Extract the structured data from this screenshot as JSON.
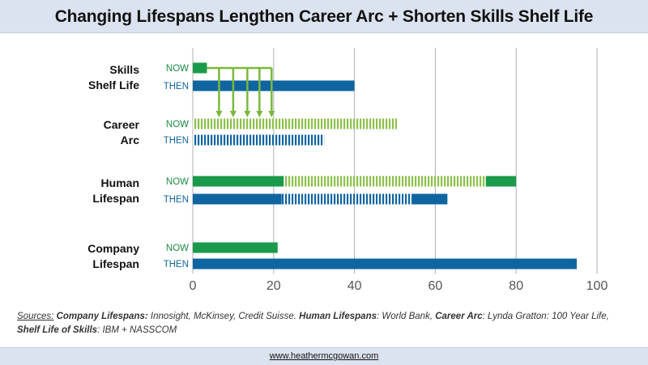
{
  "title": "Changing Lifespans Lengthen Career Arc + Shorten Skills Shelf Life",
  "sources": {
    "prefix": "Sources:",
    "company_label": "Company Lifespans:",
    "company_text": "Innosight, McKinsey, Credit Suisse.",
    "human_label": "Human Lifespans",
    "human_text": ": World Bank,",
    "career_label": "Career Arc",
    "career_text": ": Lynda Gratton: 100 Year Life,",
    "skills_label": "Shelf Life of Skills",
    "skills_text": ": IBM + NASSCOM"
  },
  "footer_url": "www.heathermcgowan.com",
  "colors": {
    "now": "#1a9a4a",
    "now_light": "#8dc04a",
    "then": "#0f65a0",
    "now_label": "#1a8a44",
    "then_label": "#0f65a0",
    "grid": "#b0b0b0",
    "arrow": "#7ab83c"
  },
  "chart_data": {
    "type": "bar",
    "orientation": "horizontal",
    "xlim": [
      0,
      100
    ],
    "xticks": [
      0,
      20,
      40,
      60,
      80,
      100
    ],
    "grid": "vertical",
    "categories": [
      {
        "name_lines": [
          "Skills",
          "Shelf Life"
        ],
        "rows": [
          {
            "label": "NOW",
            "segments": [
              {
                "start": 0,
                "end": 3.5,
                "style": "solid-now"
              }
            ]
          },
          {
            "label": "THEN",
            "segments": [
              {
                "start": 0,
                "end": 40,
                "style": "solid-then"
              }
            ]
          }
        ]
      },
      {
        "name_lines": [
          "Career",
          "Arc"
        ],
        "rows": [
          {
            "label": "NOW",
            "segments": [
              {
                "start": 0,
                "end": 50.5,
                "style": "striped-now"
              }
            ]
          },
          {
            "label": "THEN",
            "segments": [
              {
                "start": 0,
                "end": 32.5,
                "style": "striped-then"
              }
            ]
          }
        ]
      },
      {
        "name_lines": [
          "Human",
          "Lifespan"
        ],
        "rows": [
          {
            "label": "NOW",
            "segments": [
              {
                "start": 0,
                "end": 22.5,
                "style": "solid-now"
              },
              {
                "start": 22.5,
                "end": 72.5,
                "style": "striped-now"
              },
              {
                "start": 72.5,
                "end": 80,
                "style": "solid-now"
              }
            ]
          },
          {
            "label": "THEN",
            "segments": [
              {
                "start": 0,
                "end": 22,
                "style": "solid-then"
              },
              {
                "start": 22,
                "end": 54.5,
                "style": "striped-then"
              },
              {
                "start": 54.5,
                "end": 63,
                "style": "solid-then"
              }
            ]
          }
        ]
      },
      {
        "name_lines": [
          "Company",
          "Lifespan"
        ],
        "rows": [
          {
            "label": "NOW",
            "segments": [
              {
                "start": 0,
                "end": 21,
                "style": "solid-now"
              }
            ]
          },
          {
            "label": "THEN",
            "segments": [
              {
                "start": 0,
                "end": 95,
                "style": "solid-then"
              }
            ]
          }
        ]
      }
    ],
    "annotation": {
      "type": "repeated-arrows",
      "from_category": 0,
      "to_category": 1,
      "arrow_x_values": [
        6.5,
        10,
        13.5,
        16.5,
        19.5
      ]
    }
  }
}
